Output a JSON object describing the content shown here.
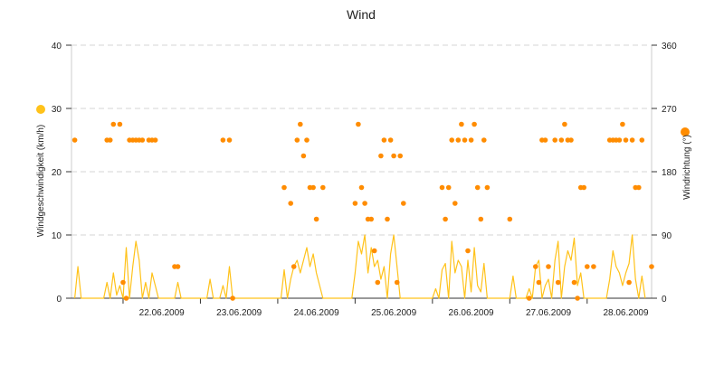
{
  "chart_data": {
    "type": "line",
    "title": "Wind",
    "ylabel": "Windgeschwindigkeit (km/h)",
    "y2label": "Windrichtung (°)",
    "ylim": [
      0,
      40
    ],
    "y2lim": [
      0,
      360
    ],
    "yticks": [
      0,
      10,
      20,
      30,
      40
    ],
    "y2ticks": [
      0,
      90,
      180,
      270,
      360
    ],
    "xlim": [
      "2009-06-21T08:00",
      "2009-06-28T20:00"
    ],
    "categories": [
      "22.06.2009",
      "23.06.2009",
      "24.06.2009",
      "25.06.2009",
      "26.06.2009",
      "27.06.2009",
      "28.06.2009"
    ],
    "grid": true,
    "legend": "left and right of plot",
    "series": [
      {
        "name": "Windgeschwindigkeit",
        "axis": "left",
        "style": "line",
        "color": "#FFC21A",
        "points": [
          [
            "2009-06-21T09:00",
            0
          ],
          [
            "2009-06-21T10:00",
            5
          ],
          [
            "2009-06-21T11:00",
            0
          ],
          [
            "2009-06-21T18:00",
            0
          ],
          [
            "2009-06-21T19:00",
            2.5
          ],
          [
            "2009-06-21T20:00",
            0
          ],
          [
            "2009-06-21T21:00",
            4
          ],
          [
            "2009-06-21T22:00",
            0.5
          ],
          [
            "2009-06-21T23:00",
            2
          ],
          [
            "2009-06-22T00:00",
            0
          ],
          [
            "2009-06-22T01:00",
            8
          ],
          [
            "2009-06-22T02:00",
            0
          ],
          [
            "2009-06-22T03:00",
            5
          ],
          [
            "2009-06-22T04:00",
            9
          ],
          [
            "2009-06-22T05:00",
            6
          ],
          [
            "2009-06-22T06:00",
            0
          ],
          [
            "2009-06-22T07:00",
            2.5
          ],
          [
            "2009-06-22T08:00",
            0
          ],
          [
            "2009-06-22T09:00",
            4
          ],
          [
            "2009-06-22T10:00",
            2
          ],
          [
            "2009-06-22T11:00",
            0
          ],
          [
            "2009-06-22T16:00",
            0
          ],
          [
            "2009-06-22T17:00",
            2.5
          ],
          [
            "2009-06-22T18:00",
            0
          ],
          [
            "2009-06-23T02:00",
            0
          ],
          [
            "2009-06-23T03:00",
            3
          ],
          [
            "2009-06-23T04:00",
            0
          ],
          [
            "2009-06-23T06:00",
            0
          ],
          [
            "2009-06-23T07:00",
            2
          ],
          [
            "2009-06-23T08:00",
            0
          ],
          [
            "2009-06-23T09:00",
            5
          ],
          [
            "2009-06-23T10:00",
            0
          ],
          [
            "2009-06-24T01:00",
            0
          ],
          [
            "2009-06-24T02:00",
            4.5
          ],
          [
            "2009-06-24T03:00",
            0
          ],
          [
            "2009-06-24T04:00",
            3
          ],
          [
            "2009-06-24T05:00",
            5
          ],
          [
            "2009-06-24T06:00",
            6
          ],
          [
            "2009-06-24T07:00",
            4
          ],
          [
            "2009-06-24T08:00",
            6
          ],
          [
            "2009-06-24T09:00",
            8
          ],
          [
            "2009-06-24T10:00",
            5
          ],
          [
            "2009-06-24T11:00",
            7
          ],
          [
            "2009-06-24T12:00",
            4
          ],
          [
            "2009-06-24T13:00",
            2
          ],
          [
            "2009-06-24T14:00",
            0
          ],
          [
            "2009-06-24T23:00",
            0
          ],
          [
            "2009-06-25T00:00",
            4
          ],
          [
            "2009-06-25T01:00",
            9
          ],
          [
            "2009-06-25T02:00",
            7
          ],
          [
            "2009-06-25T03:00",
            10
          ],
          [
            "2009-06-25T04:00",
            4
          ],
          [
            "2009-06-25T05:00",
            8
          ],
          [
            "2009-06-25T06:00",
            5
          ],
          [
            "2009-06-25T07:00",
            6
          ],
          [
            "2009-06-25T08:00",
            3
          ],
          [
            "2009-06-25T09:00",
            5
          ],
          [
            "2009-06-25T10:00",
            0
          ],
          [
            "2009-06-25T11:00",
            7
          ],
          [
            "2009-06-25T12:00",
            10
          ],
          [
            "2009-06-25T13:00",
            5
          ],
          [
            "2009-06-25T14:00",
            0
          ],
          [
            "2009-06-26T00:00",
            0
          ],
          [
            "2009-06-26T01:00",
            1.5
          ],
          [
            "2009-06-26T02:00",
            0
          ],
          [
            "2009-06-26T03:00",
            4.5
          ],
          [
            "2009-06-26T04:00",
            5.5
          ],
          [
            "2009-06-26T05:00",
            0
          ],
          [
            "2009-06-26T06:00",
            9
          ],
          [
            "2009-06-26T07:00",
            4
          ],
          [
            "2009-06-26T08:00",
            6
          ],
          [
            "2009-06-26T09:00",
            5
          ],
          [
            "2009-06-26T10:00",
            0
          ],
          [
            "2009-06-26T11:00",
            6
          ],
          [
            "2009-06-26T12:00",
            1
          ],
          [
            "2009-06-26T13:00",
            8
          ],
          [
            "2009-06-26T14:00",
            2
          ],
          [
            "2009-06-26T15:00",
            1
          ],
          [
            "2009-06-26T16:00",
            5.5
          ],
          [
            "2009-06-26T17:00",
            0
          ],
          [
            "2009-06-27T00:00",
            0
          ],
          [
            "2009-06-27T01:00",
            3.5
          ],
          [
            "2009-06-27T02:00",
            0
          ],
          [
            "2009-06-27T05:00",
            0
          ],
          [
            "2009-06-27T06:00",
            1.5
          ],
          [
            "2009-06-27T07:00",
            0
          ],
          [
            "2009-06-27T08:00",
            5
          ],
          [
            "2009-06-27T09:00",
            6
          ],
          [
            "2009-06-27T10:00",
            0
          ],
          [
            "2009-06-27T11:00",
            2
          ],
          [
            "2009-06-27T12:00",
            3
          ],
          [
            "2009-06-27T13:00",
            0
          ],
          [
            "2009-06-27T14:00",
            6
          ],
          [
            "2009-06-27T15:00",
            9
          ],
          [
            "2009-06-27T16:00",
            0
          ],
          [
            "2009-06-27T17:00",
            5
          ],
          [
            "2009-06-27T18:00",
            7.5
          ],
          [
            "2009-06-27T19:00",
            6
          ],
          [
            "2009-06-27T20:00",
            9.5
          ],
          [
            "2009-06-27T21:00",
            2
          ],
          [
            "2009-06-27T22:00",
            4
          ],
          [
            "2009-06-27T23:00",
            0
          ],
          [
            "2009-06-28T06:00",
            0
          ],
          [
            "2009-06-28T07:00",
            3
          ],
          [
            "2009-06-28T08:00",
            7.5
          ],
          [
            "2009-06-28T09:00",
            5
          ],
          [
            "2009-06-28T10:00",
            4
          ],
          [
            "2009-06-28T11:00",
            2
          ],
          [
            "2009-06-28T12:00",
            4
          ],
          [
            "2009-06-28T13:00",
            5.5
          ],
          [
            "2009-06-28T14:00",
            10
          ],
          [
            "2009-06-28T15:00",
            3
          ],
          [
            "2009-06-28T16:00",
            0
          ],
          [
            "2009-06-28T17:00",
            3.5
          ],
          [
            "2009-06-28T18:00",
            0
          ]
        ]
      },
      {
        "name": "Windrichtung",
        "axis": "right",
        "style": "scatter",
        "color": "#FF8C00",
        "points": [
          [
            "2009-06-21T09:00",
            225
          ],
          [
            "2009-06-21T19:00",
            225
          ],
          [
            "2009-06-21T20:00",
            225
          ],
          [
            "2009-06-21T21:00",
            247.5
          ],
          [
            "2009-06-21T23:00",
            247.5
          ],
          [
            "2009-06-22T00:00",
            22.5
          ],
          [
            "2009-06-22T01:00",
            0
          ],
          [
            "2009-06-22T02:00",
            225
          ],
          [
            "2009-06-22T03:00",
            225
          ],
          [
            "2009-06-22T04:00",
            225
          ],
          [
            "2009-06-22T05:00",
            225
          ],
          [
            "2009-06-22T06:00",
            225
          ],
          [
            "2009-06-22T08:00",
            225
          ],
          [
            "2009-06-22T09:00",
            225
          ],
          [
            "2009-06-22T10:00",
            225
          ],
          [
            "2009-06-22T16:00",
            45
          ],
          [
            "2009-06-22T17:00",
            45
          ],
          [
            "2009-06-23T07:00",
            225
          ],
          [
            "2009-06-23T09:00",
            225
          ],
          [
            "2009-06-23T10:00",
            0
          ],
          [
            "2009-06-24T02:00",
            157.5
          ],
          [
            "2009-06-24T04:00",
            135
          ],
          [
            "2009-06-24T05:00",
            45
          ],
          [
            "2009-06-24T06:00",
            225
          ],
          [
            "2009-06-24T07:00",
            247.5
          ],
          [
            "2009-06-24T08:00",
            202.5
          ],
          [
            "2009-06-24T09:00",
            225
          ],
          [
            "2009-06-24T10:00",
            157.5
          ],
          [
            "2009-06-24T11:00",
            157.5
          ],
          [
            "2009-06-24T12:00",
            112.5
          ],
          [
            "2009-06-24T14:00",
            157.5
          ],
          [
            "2009-06-25T00:00",
            135
          ],
          [
            "2009-06-25T01:00",
            247.5
          ],
          [
            "2009-06-25T02:00",
            157.5
          ],
          [
            "2009-06-25T03:00",
            135
          ],
          [
            "2009-06-25T04:00",
            112.5
          ],
          [
            "2009-06-25T05:00",
            112.5
          ],
          [
            "2009-06-25T06:00",
            67.5
          ],
          [
            "2009-06-25T07:00",
            22.5
          ],
          [
            "2009-06-25T08:00",
            202.5
          ],
          [
            "2009-06-25T09:00",
            225
          ],
          [
            "2009-06-25T10:00",
            112.5
          ],
          [
            "2009-06-25T11:00",
            225
          ],
          [
            "2009-06-25T12:00",
            202.5
          ],
          [
            "2009-06-25T13:00",
            22.5
          ],
          [
            "2009-06-25T14:00",
            202.5
          ],
          [
            "2009-06-25T15:00",
            135
          ],
          [
            "2009-06-26T03:00",
            157.5
          ],
          [
            "2009-06-26T04:00",
            112.5
          ],
          [
            "2009-06-26T05:00",
            157.5
          ],
          [
            "2009-06-26T06:00",
            225
          ],
          [
            "2009-06-26T07:00",
            135
          ],
          [
            "2009-06-26T08:00",
            225
          ],
          [
            "2009-06-26T09:00",
            247.5
          ],
          [
            "2009-06-26T10:00",
            225
          ],
          [
            "2009-06-26T11:00",
            67.5
          ],
          [
            "2009-06-26T12:00",
            225
          ],
          [
            "2009-06-26T13:00",
            247.5
          ],
          [
            "2009-06-26T14:00",
            157.5
          ],
          [
            "2009-06-26T15:00",
            112.5
          ],
          [
            "2009-06-26T16:00",
            225
          ],
          [
            "2009-06-26T17:00",
            157.5
          ],
          [
            "2009-06-27T00:00",
            112.5
          ],
          [
            "2009-06-27T06:00",
            0
          ],
          [
            "2009-06-27T08:00",
            45
          ],
          [
            "2009-06-27T09:00",
            22.5
          ],
          [
            "2009-06-27T10:00",
            225
          ],
          [
            "2009-06-27T11:00",
            225
          ],
          [
            "2009-06-27T12:00",
            45
          ],
          [
            "2009-06-27T14:00",
            225
          ],
          [
            "2009-06-27T15:00",
            22.5
          ],
          [
            "2009-06-27T16:00",
            225
          ],
          [
            "2009-06-27T17:00",
            247.5
          ],
          [
            "2009-06-27T18:00",
            225
          ],
          [
            "2009-06-27T19:00",
            225
          ],
          [
            "2009-06-27T20:00",
            22.5
          ],
          [
            "2009-06-27T21:00",
            0
          ],
          [
            "2009-06-27T22:00",
            157.5
          ],
          [
            "2009-06-27T23:00",
            157.5
          ],
          [
            "2009-06-28T00:00",
            45
          ],
          [
            "2009-06-28T02:00",
            45
          ],
          [
            "2009-06-28T07:00",
            225
          ],
          [
            "2009-06-28T08:00",
            225
          ],
          [
            "2009-06-28T09:00",
            225
          ],
          [
            "2009-06-28T10:00",
            225
          ],
          [
            "2009-06-28T11:00",
            247.5
          ],
          [
            "2009-06-28T12:00",
            225
          ],
          [
            "2009-06-28T13:00",
            22.5
          ],
          [
            "2009-06-28T14:00",
            225
          ],
          [
            "2009-06-28T15:00",
            157.5
          ],
          [
            "2009-06-28T16:00",
            157.5
          ],
          [
            "2009-06-28T17:00",
            225
          ],
          [
            "2009-06-28T20:00",
            45
          ]
        ]
      }
    ]
  }
}
